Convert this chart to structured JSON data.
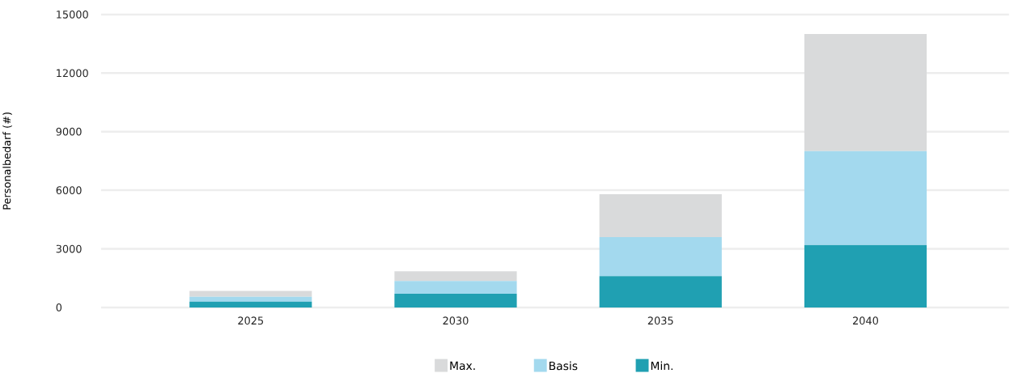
{
  "chart_data": {
    "type": "bar",
    "stacked": true,
    "ylabel": "Personalbedarf (#)",
    "categories": [
      "2025",
      "2030",
      "2035",
      "2040"
    ],
    "series": [
      {
        "name": "Min.",
        "color": "#20a0b2",
        "values": [
          300,
          700,
          1600,
          3200
        ]
      },
      {
        "name": "Basis",
        "color": "#a3d9ee",
        "values": [
          250,
          650,
          2000,
          4800
        ]
      },
      {
        "name": "Max.",
        "color": "#d9dadb",
        "values": [
          300,
          500,
          2200,
          6000
        ]
      }
    ],
    "ylim": [
      0,
      15000
    ],
    "yticks": [
      0,
      3000,
      6000,
      9000,
      12000,
      15000
    ],
    "grid": "y",
    "legend": "bottom"
  }
}
